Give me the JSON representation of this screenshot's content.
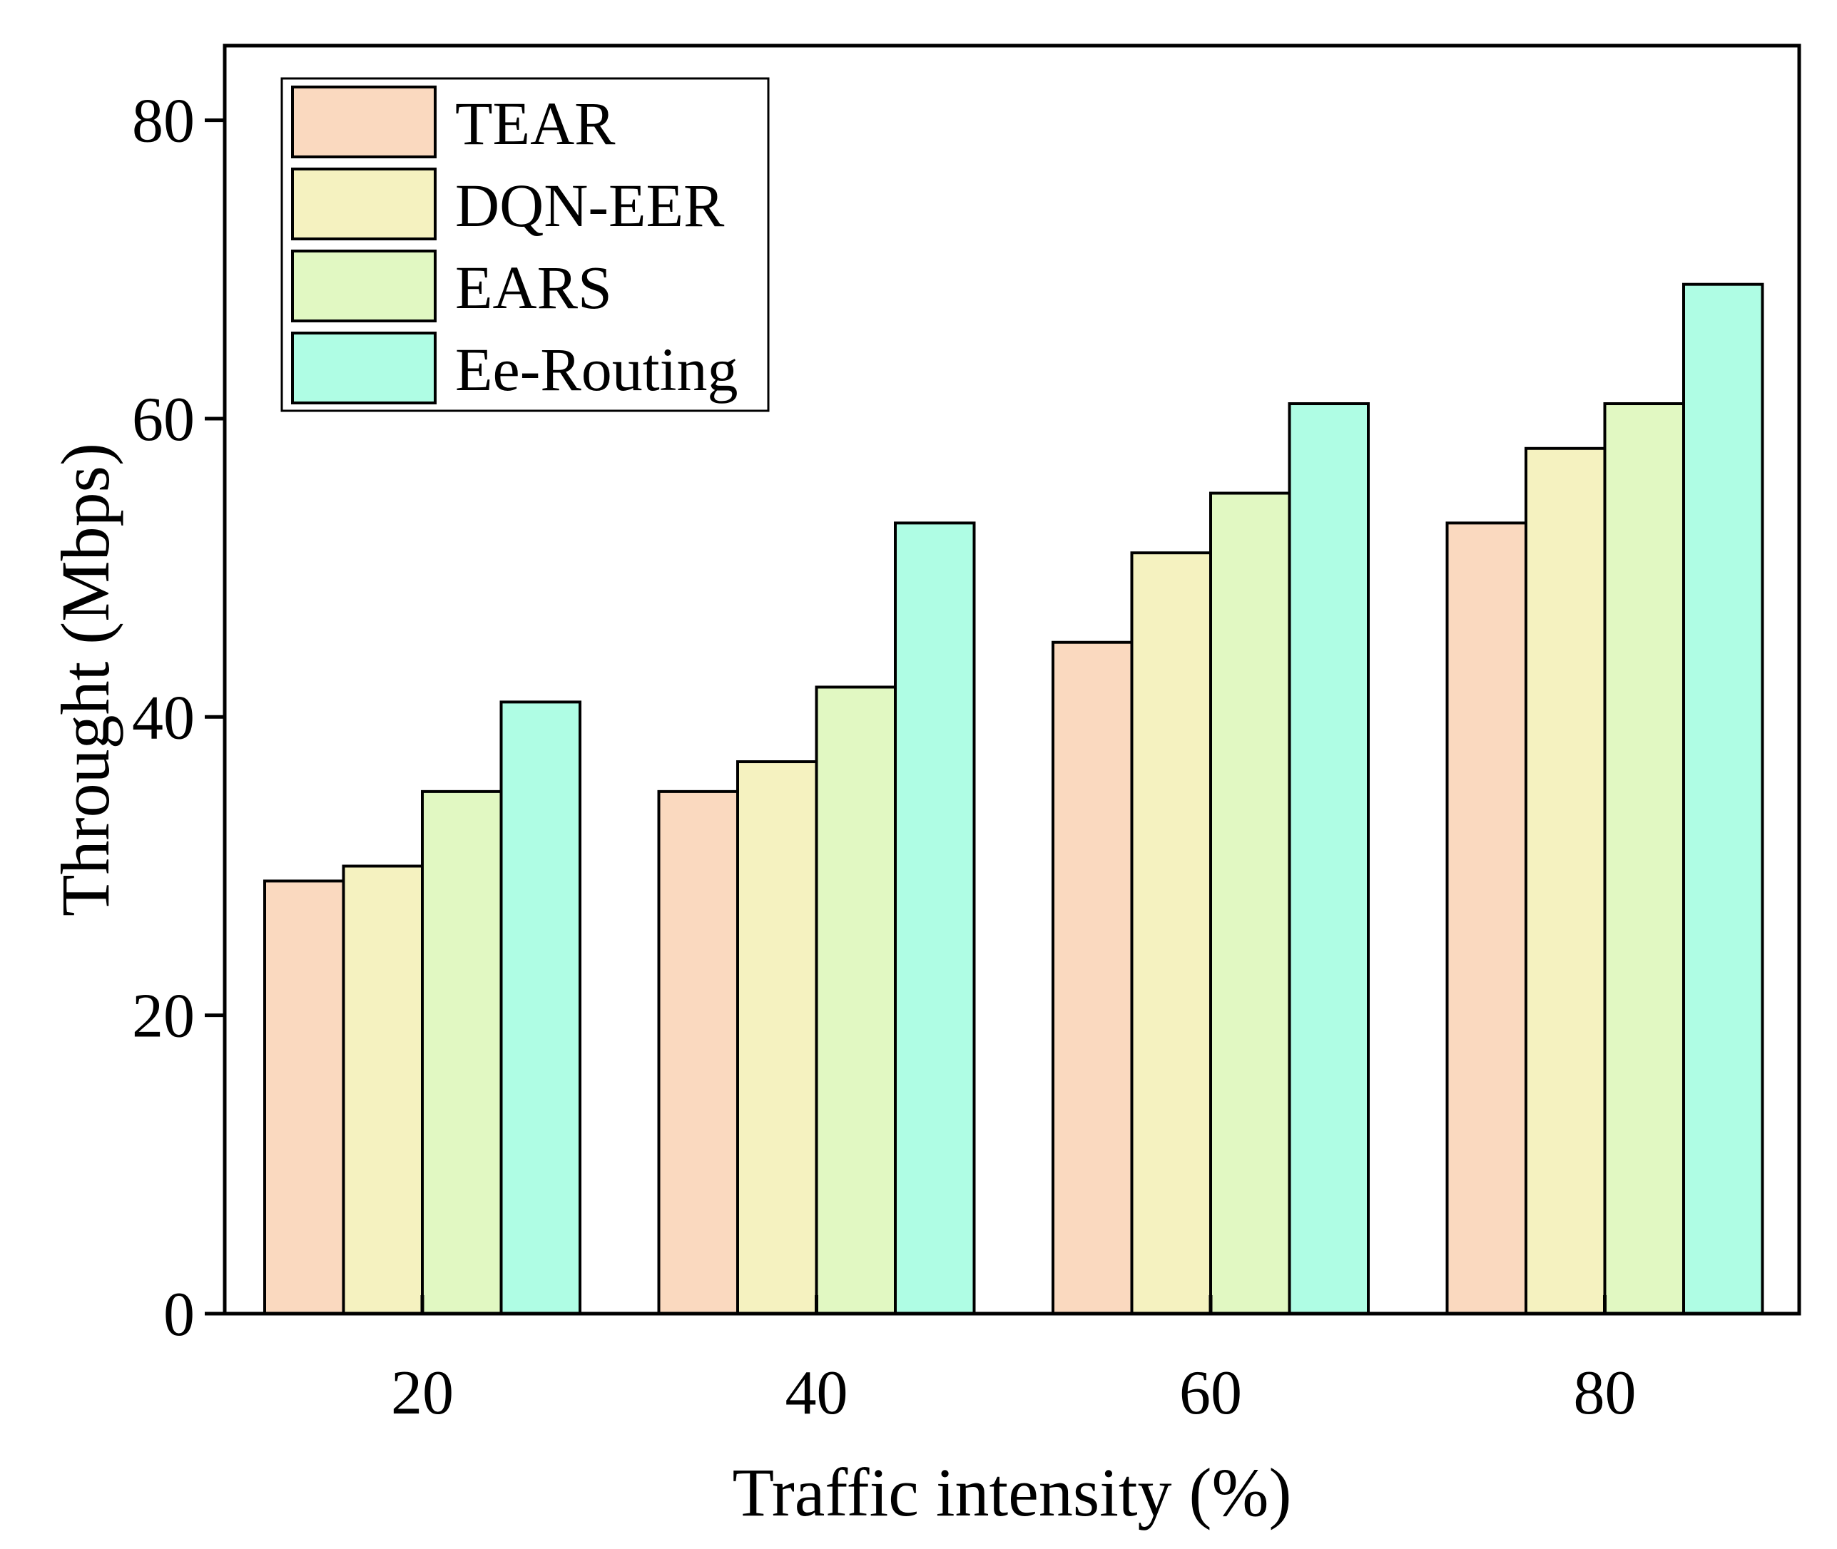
{
  "chart_data": {
    "type": "bar",
    "title": "",
    "xlabel": "Traffic intensity (%)",
    "ylabel": "Throught (Mbps)",
    "categories": [
      "20",
      "40",
      "60",
      "80"
    ],
    "ylim": [
      0,
      85
    ],
    "yticks": [
      0,
      20,
      40,
      60,
      80
    ],
    "grid": false,
    "legend_position": "top-left",
    "series": [
      {
        "name": "TEAR",
        "color": "#FAD9BF",
        "values": [
          29,
          35,
          45,
          53
        ]
      },
      {
        "name": "DQN-EER",
        "color": "#F5F2C0",
        "values": [
          30,
          37,
          51,
          58
        ]
      },
      {
        "name": "EARS",
        "color": "#E1F8C2",
        "values": [
          35,
          42,
          55,
          61
        ]
      },
      {
        "name": "Ee-Routing",
        "color": "#AFFDE4",
        "values": [
          41,
          53,
          61,
          69
        ]
      }
    ]
  }
}
